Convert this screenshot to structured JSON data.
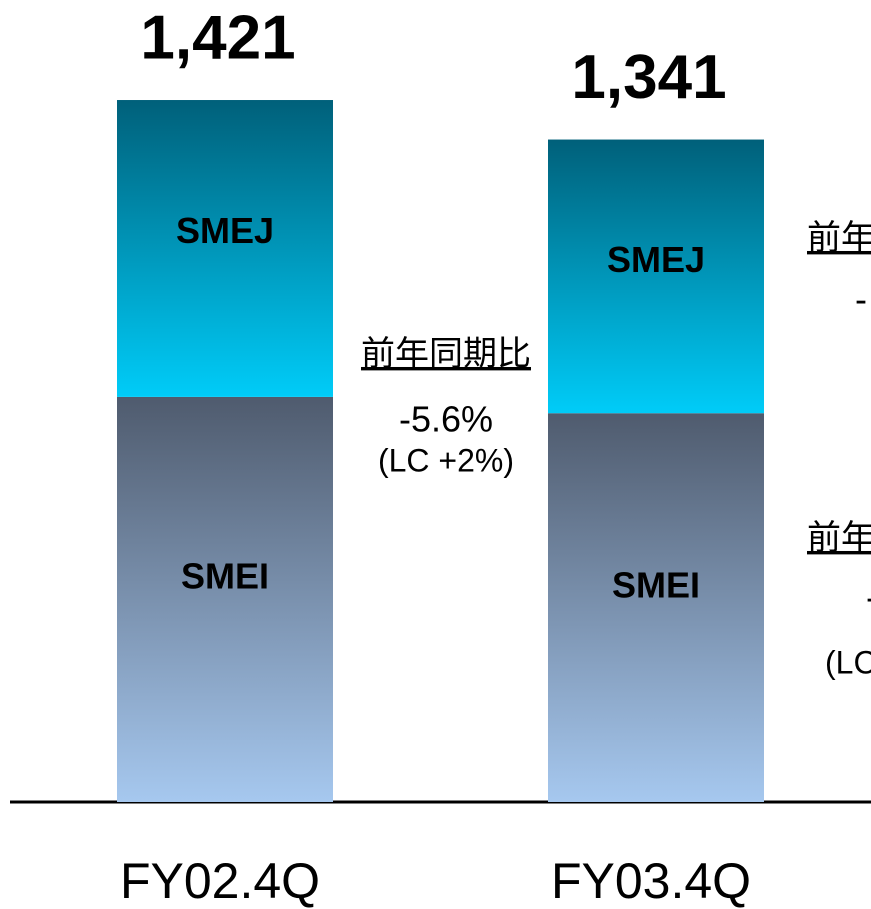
{
  "chart_data": {
    "type": "stacked_bar",
    "categories": [
      "FY02.4Q",
      "FY03.4Q"
    ],
    "series": [
      {
        "name": "SMEI",
        "colors": [
          "#4f5b6e",
          "#a6c8ef"
        ],
        "values": [
          820,
          787
        ]
      },
      {
        "name": "SMEJ",
        "colors": [
          "#00607a",
          "#00ccf8"
        ],
        "values": [
          601,
          554
        ]
      }
    ],
    "totals": {
      "values": [
        1421,
        1341
      ],
      "value_labels": [
        "1,421",
        "1,341"
      ]
    },
    "ylim": [
      0,
      1500
    ],
    "annotations": [
      {
        "title": "前年同期比",
        "lines": [
          "-5.6%",
          "(LC +2%)"
        ]
      },
      {
        "title": "前年",
        "lines": [
          "-"
        ]
      },
      {
        "title": "前年",
        "lines": [
          "-",
          "(LC"
        ]
      }
    ]
  }
}
